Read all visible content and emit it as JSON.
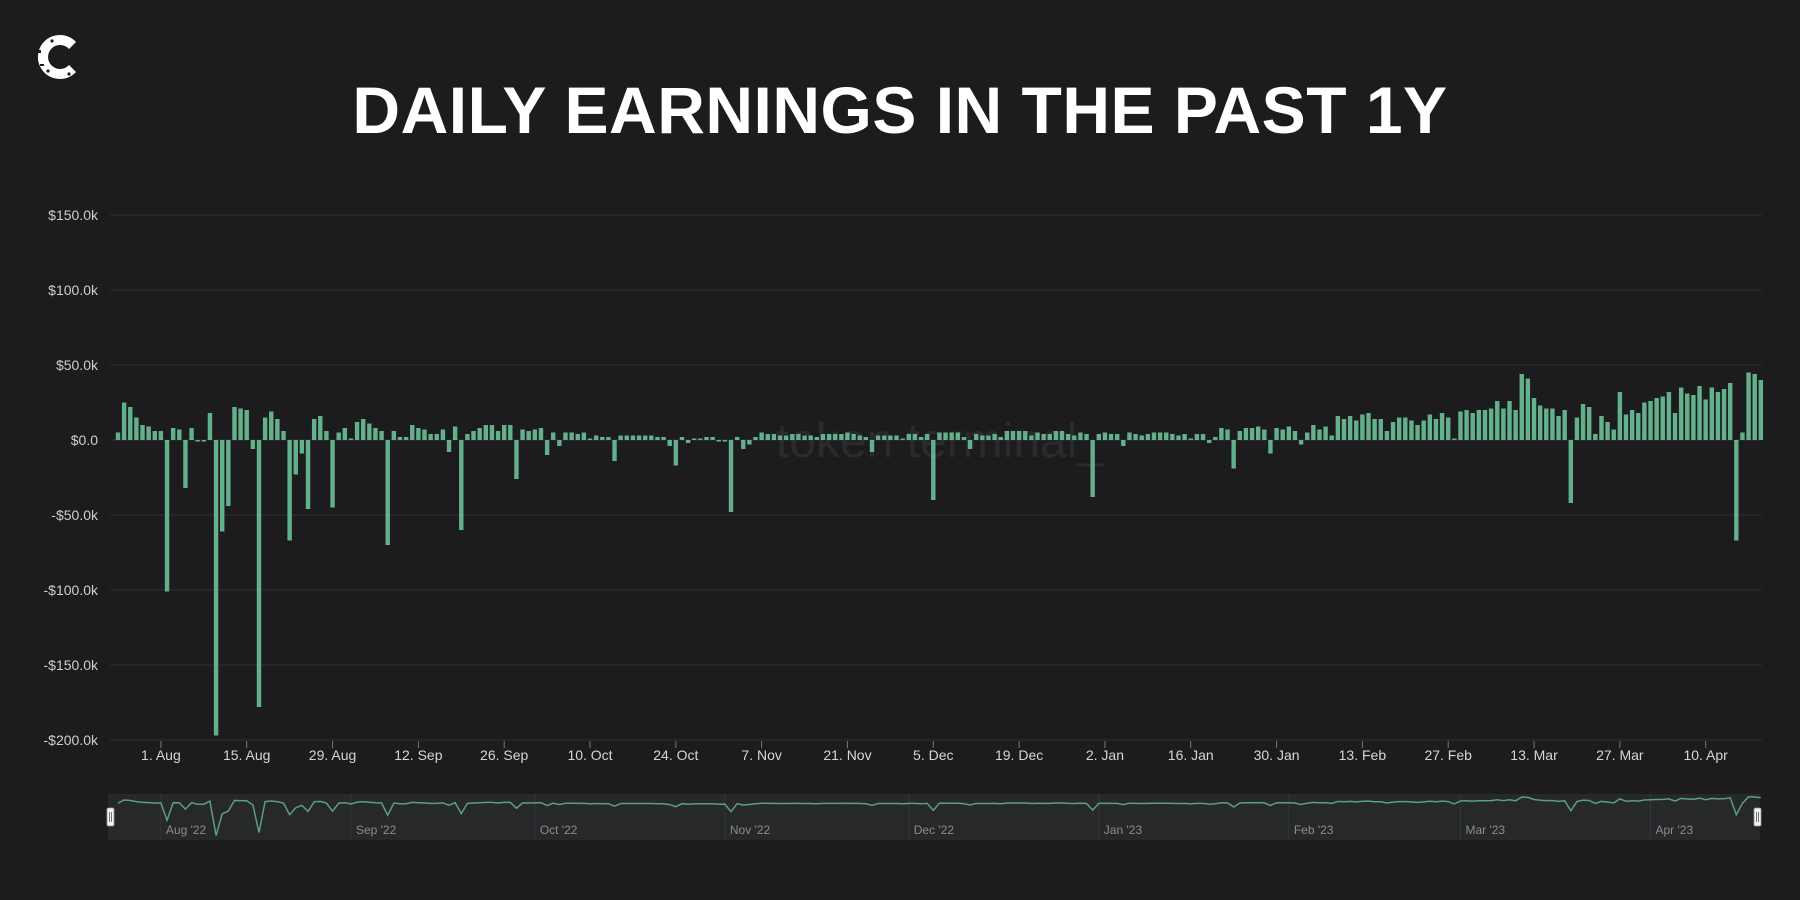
{
  "header": {
    "logo_icon": "c-logo-icon",
    "title": "DAILY EARNINGS IN THE PAST 1Y"
  },
  "watermark": "token terminal_",
  "colors": {
    "background": "#1c1c1e",
    "bar": "#62b08c",
    "grid": "#2f2f32",
    "navigator_bg": "#262829",
    "navigator_line": "#5a9f82"
  },
  "chart_data": {
    "type": "bar",
    "title": "DAILY EARNINGS IN THE PAST 1Y",
    "xlabel": "",
    "ylabel": "",
    "units": "thousand USD",
    "ylim": [
      -200,
      150
    ],
    "grid": true,
    "y_ticks": [
      {
        "value": 150,
        "label": "$150.0k"
      },
      {
        "value": 100,
        "label": "$100.0k"
      },
      {
        "value": 50,
        "label": "$50.0k"
      },
      {
        "value": 0,
        "label": "$0.0"
      },
      {
        "value": -50,
        "label": "-$50.0k"
      },
      {
        "value": -100,
        "label": "-$100.0k"
      },
      {
        "value": -150,
        "label": "-$150.0k"
      },
      {
        "value": -200,
        "label": "-$200.0k"
      }
    ],
    "x_ticks": [
      {
        "date": "2022-08-01",
        "label": "1. Aug"
      },
      {
        "date": "2022-08-15",
        "label": "15. Aug"
      },
      {
        "date": "2022-08-29",
        "label": "29. Aug"
      },
      {
        "date": "2022-09-12",
        "label": "12. Sep"
      },
      {
        "date": "2022-09-26",
        "label": "26. Sep"
      },
      {
        "date": "2022-10-10",
        "label": "10. Oct"
      },
      {
        "date": "2022-10-24",
        "label": "24. Oct"
      },
      {
        "date": "2022-11-07",
        "label": "7. Nov"
      },
      {
        "date": "2022-11-21",
        "label": "21. Nov"
      },
      {
        "date": "2022-12-05",
        "label": "5. Dec"
      },
      {
        "date": "2022-12-19",
        "label": "19. Dec"
      },
      {
        "date": "2023-01-02",
        "label": "2. Jan"
      },
      {
        "date": "2023-01-16",
        "label": "16. Jan"
      },
      {
        "date": "2023-01-30",
        "label": "30. Jan"
      },
      {
        "date": "2023-02-13",
        "label": "13. Feb"
      },
      {
        "date": "2023-02-27",
        "label": "27. Feb"
      },
      {
        "date": "2023-03-13",
        "label": "13. Mar"
      },
      {
        "date": "2023-03-27",
        "label": "27. Mar"
      },
      {
        "date": "2023-04-10",
        "label": "10. Apr"
      }
    ],
    "navigator_labels": [
      {
        "date": "2022-08-01",
        "label": "Aug '22"
      },
      {
        "date": "2022-09-01",
        "label": "Sep '22"
      },
      {
        "date": "2022-10-01",
        "label": "Oct '22"
      },
      {
        "date": "2022-11-01",
        "label": "Nov '22"
      },
      {
        "date": "2022-12-01",
        "label": "Dec '22"
      },
      {
        "date": "2023-01-01",
        "label": "Jan '23"
      },
      {
        "date": "2023-02-01",
        "label": "Feb '23"
      },
      {
        "date": "2023-03-01",
        "label": "Mar '23"
      },
      {
        "date": "2023-04-01",
        "label": "Apr '23"
      }
    ],
    "months": [
      {
        "month": "2022-07",
        "first_day": 25,
        "values": [
          5,
          25,
          22,
          15,
          10,
          9,
          6
        ]
      },
      {
        "month": "2022-08",
        "first_day": 1,
        "values": [
          6,
          -101,
          8,
          7,
          -32,
          8,
          -1,
          -1,
          18,
          -197,
          -61,
          -44,
          22,
          21,
          20,
          -6,
          -178,
          15,
          19,
          14,
          6,
          -67,
          -23,
          -9,
          -46,
          14,
          16,
          6,
          -45,
          5,
          8
        ]
      },
      {
        "month": "2022-09",
        "first_day": 1,
        "values": [
          0,
          12,
          14,
          11,
          8,
          6,
          -70,
          6,
          2,
          2,
          10,
          8,
          7,
          4,
          4,
          7,
          -8,
          9,
          -60,
          4,
          6,
          8,
          10,
          10,
          6,
          10,
          10,
          -26,
          7,
          6
        ]
      },
      {
        "month": "2022-10",
        "first_day": 1,
        "values": [
          7,
          8,
          -10,
          5,
          -4,
          5,
          5,
          4,
          5,
          0.5,
          3,
          2,
          2,
          -14,
          3,
          3,
          3,
          3,
          3,
          3,
          2,
          2,
          -4,
          -17,
          2,
          -2,
          0.5,
          1,
          2,
          2,
          -1
        ]
      },
      {
        "month": "2022-11",
        "first_day": 1,
        "values": [
          -1,
          -48,
          2,
          -6,
          -3,
          2,
          5,
          4,
          4,
          3,
          3,
          4,
          4,
          3,
          3,
          2,
          4,
          4,
          4,
          4,
          5,
          4,
          3,
          2,
          -8,
          3,
          3,
          3,
          3,
          1
        ]
      },
      {
        "month": "2022-12",
        "first_day": 1,
        "values": [
          4,
          4,
          2,
          4,
          -40,
          5,
          5,
          5,
          5,
          2,
          -6,
          4,
          3,
          3,
          4,
          2,
          6,
          6,
          6,
          6,
          3,
          5,
          4,
          4,
          6,
          6,
          4,
          3,
          5,
          4,
          -38
        ]
      },
      {
        "month": "2023-01",
        "first_day": 1,
        "values": [
          4,
          5,
          4,
          4,
          -4,
          5,
          4,
          3,
          4,
          5,
          5,
          5,
          4,
          3,
          4,
          0.5,
          4,
          4,
          -2,
          2,
          8,
          7,
          -19,
          6,
          8,
          8,
          9,
          7,
          -9,
          8,
          7
        ]
      },
      {
        "month": "2023-02",
        "first_day": 1,
        "values": [
          9,
          6,
          -3,
          5,
          10,
          7,
          9,
          3,
          16,
          14,
          16,
          13,
          17,
          18,
          14,
          14,
          6,
          12,
          15,
          15,
          13,
          10,
          13,
          17,
          14,
          18,
          15,
          0.5
        ]
      },
      {
        "month": "2023-03",
        "first_day": 1,
        "values": [
          19,
          20,
          18,
          20,
          20,
          21,
          26,
          21,
          26,
          20,
          44,
          41,
          28,
          23,
          21,
          21,
          16,
          20,
          -42,
          15,
          24,
          22,
          4,
          16,
          12,
          7,
          32,
          17,
          20,
          18,
          25
        ]
      },
      {
        "month": "2023-04",
        "first_day": 1,
        "values": [
          26,
          28,
          29,
          32,
          18,
          35,
          31,
          30,
          36,
          27,
          35,
          32,
          34,
          38,
          -67,
          5,
          45,
          44,
          40
        ]
      }
    ]
  }
}
